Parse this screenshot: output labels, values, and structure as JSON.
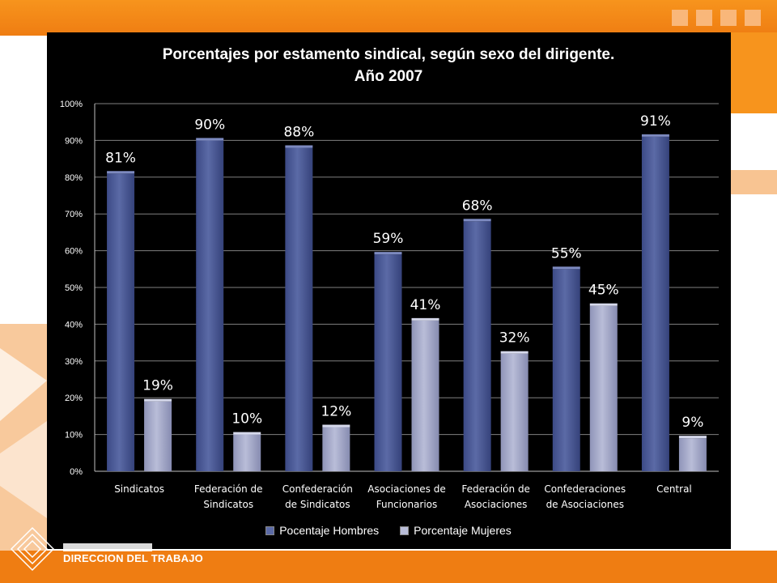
{
  "slide": {
    "footer_agency": "DIRECCION DEL TRABAJO",
    "colors": {
      "brand_orange": "#f7941d",
      "panel": "#000000",
      "hombres": "#5b6aa6",
      "mujeres": "#b9bdd8"
    }
  },
  "chart_data": {
    "type": "bar",
    "title": "Porcentajes por estamento sindical, según sexo del dirigente.",
    "subtitle": "Año 2007",
    "categories": [
      [
        "Sindicatos"
      ],
      [
        "Federación de",
        "Sindicatos"
      ],
      [
        "Confederación",
        "de Sindicatos"
      ],
      [
        "Asociaciones de",
        "Funcionarios"
      ],
      [
        "Federación de",
        "Asociaciones"
      ],
      [
        "Confederaciones",
        "de Asociaciones"
      ],
      [
        "Central"
      ]
    ],
    "series": [
      {
        "name": "Pocentaje Hombres",
        "values": [
          81,
          90,
          88,
          59,
          68,
          55,
          91
        ],
        "labels": [
          "81%",
          "90%",
          "88%",
          "59%",
          "68%",
          "55%",
          "91%"
        ]
      },
      {
        "name": "Porcentaje Mujeres",
        "values": [
          19,
          10,
          12,
          41,
          32,
          45,
          9
        ],
        "labels": [
          "19%",
          "10%",
          "12%",
          "41%",
          "32%",
          "45%",
          "9%"
        ]
      }
    ],
    "ylim": [
      0,
      100
    ],
    "yticks": [
      "0%",
      "10%",
      "20%",
      "30%",
      "40%",
      "50%",
      "60%",
      "70%",
      "80%",
      "90%",
      "100%"
    ],
    "grid": true,
    "legend": "bottom"
  }
}
